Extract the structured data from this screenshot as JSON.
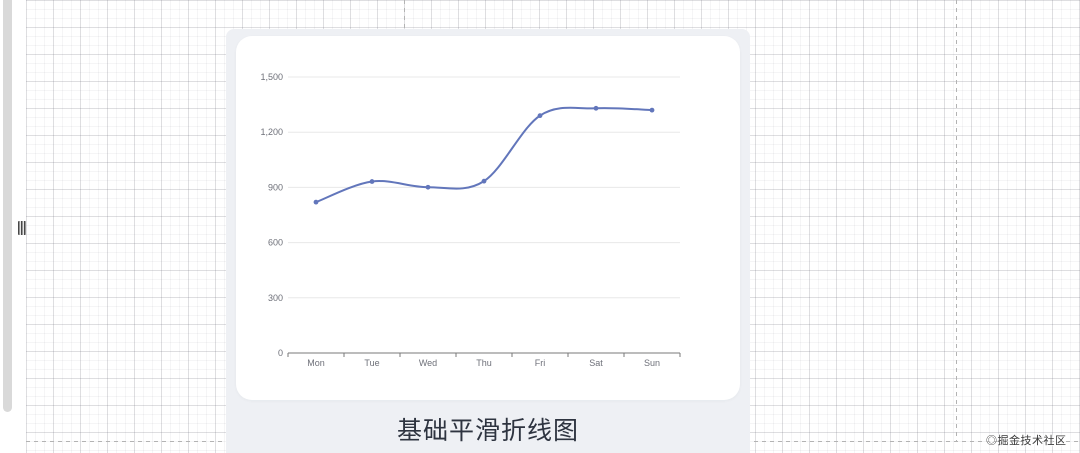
{
  "canvas": {
    "watermark": "◎掘金技术社区"
  },
  "panel": {
    "title": "基础平滑折线图"
  },
  "chart_data": {
    "type": "line",
    "smooth": true,
    "title": "基础平滑折线图",
    "categories": [
      "Mon",
      "Tue",
      "Wed",
      "Thu",
      "Fri",
      "Sat",
      "Sun"
    ],
    "values": [
      820,
      932,
      901,
      934,
      1290,
      1330,
      1320
    ],
    "xlabel": "",
    "ylabel": "",
    "ylim": [
      0,
      1500
    ],
    "yticks": [
      0,
      300,
      600,
      900,
      1200,
      1500
    ],
    "ytick_labels": [
      "0",
      "300",
      "600",
      "900",
      "1,200",
      "1,500"
    ],
    "legend": "none",
    "grid": "on",
    "colors": {
      "line": "#6276bb",
      "gridline": "#e8e8e8",
      "axis": "#787878",
      "tick_label": "#6e7079"
    }
  }
}
